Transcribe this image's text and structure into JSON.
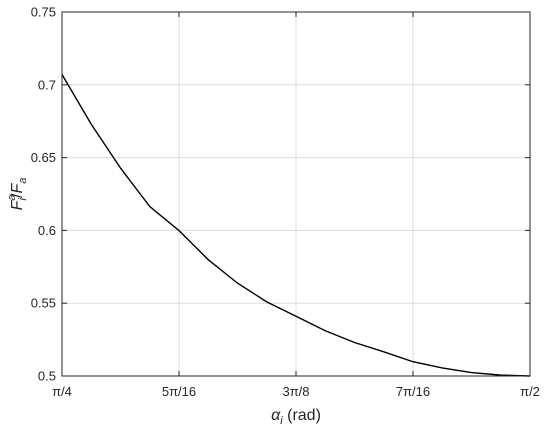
{
  "chart_data": {
    "type": "line",
    "xlabel": {
      "symbol": "α",
      "subscript": "i",
      "unit": " (rad)"
    },
    "ylabel": {
      "base1": "F",
      "sup1": "a",
      "sub1": "i",
      "slash": "/",
      "base2": "F",
      "sub2": "a"
    },
    "xlim": [
      0.7853981634,
      1.5707963268
    ],
    "ylim": [
      0.5,
      0.75
    ],
    "x_ticks": [
      {
        "value": 0.7853981634,
        "label": "π/4"
      },
      {
        "value": 0.9817477042,
        "label": "5π/16"
      },
      {
        "value": 1.1780972451,
        "label": "3π/8"
      },
      {
        "value": 1.3744467859,
        "label": "7π/16"
      },
      {
        "value": 1.5707963268,
        "label": "π/2"
      }
    ],
    "y_ticks": [
      {
        "value": 0.5,
        "label": "0.5"
      },
      {
        "value": 0.55,
        "label": "0.55"
      },
      {
        "value": 0.6,
        "label": "0.6"
      },
      {
        "value": 0.65,
        "label": "0.65"
      },
      {
        "value": 0.7,
        "label": "0.7"
      },
      {
        "value": 0.75,
        "label": "0.75"
      }
    ],
    "grid": true,
    "series": [
      {
        "color": "#000000",
        "x": [
          0.7854,
          0.8345,
          0.8836,
          0.9327,
          0.9817,
          1.0308,
          1.0799,
          1.129,
          1.1781,
          1.2272,
          1.2763,
          1.3254,
          1.3744,
          1.4235,
          1.4726,
          1.5217,
          1.5708
        ],
        "y": [
          0.7071,
          0.6729,
          0.6428,
          0.6164,
          0.5999,
          0.5799,
          0.5638,
          0.5509,
          0.541,
          0.5311,
          0.523,
          0.5166,
          0.5098,
          0.5055,
          0.5024,
          0.5006,
          0.5
        ]
      }
    ]
  }
}
